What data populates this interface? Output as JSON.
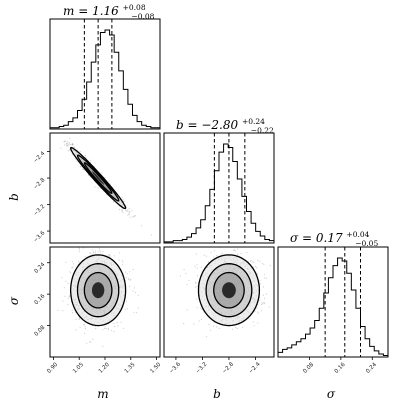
{
  "chart_data": {
    "type": "corner",
    "parameters": [
      {
        "key": "m",
        "label": "m",
        "title_main": "m = 1.16",
        "title_sup": "+0.08",
        "title_sub": "−0.08",
        "median": 1.16,
        "q_low": 1.08,
        "q_high": 1.24,
        "range": [
          0.88,
          1.52
        ],
        "ticks": [
          0.9,
          1.05,
          1.2,
          1.35,
          1.5
        ],
        "tick_labels": [
          "0.90",
          "1.05",
          "1.20",
          "1.35",
          "1.50"
        ],
        "hist_counts": [
          1,
          1,
          2,
          3,
          6,
          9,
          15,
          24,
          38,
          54,
          68,
          78,
          80,
          76,
          62,
          47,
          32,
          20,
          11,
          6,
          3,
          2,
          1,
          1
        ]
      },
      {
        "key": "b",
        "label": "b",
        "title_main": "b = −2.80",
        "title_sup": "+0.24",
        "title_sub": "−0.22",
        "median": -2.8,
        "q_low": -3.02,
        "q_high": -2.56,
        "range": [
          -3.78,
          -2.12
        ],
        "ticks": [
          -3.6,
          -3.2,
          -2.8,
          -2.4
        ],
        "tick_labels": [
          "−3.6",
          "−3.2",
          "−2.8",
          "−2.4"
        ],
        "extra_tick_labels": [
          "−2.0"
        ],
        "hist_counts": [
          1,
          1,
          2,
          2,
          3,
          5,
          8,
          13,
          20,
          32,
          46,
          62,
          78,
          85,
          82,
          70,
          55,
          40,
          27,
          17,
          10,
          6,
          3,
          2
        ]
      },
      {
        "key": "sigma",
        "label": "σ",
        "title_main": "σ = 0.17",
        "title_sup": "+0.04",
        "title_sub": "−0.05",
        "median": 0.17,
        "q_low": 0.12,
        "q_high": 0.21,
        "range": [
          0.0,
          0.28
        ],
        "ticks": [
          0.08,
          0.16,
          0.24
        ],
        "tick_labels": [
          "0.08",
          "0.16",
          "0.24"
        ],
        "extra_tick_labels": [
          "0.00"
        ],
        "hist_counts": [
          3,
          5,
          6,
          8,
          10,
          12,
          15,
          19,
          24,
          32,
          42,
          52,
          60,
          65,
          63,
          55,
          44,
          32,
          20,
          12,
          7,
          4,
          2,
          1
        ]
      }
    ],
    "joint": {
      "m_b_correlation": -0.98,
      "m_sigma_correlation": 0.0,
      "b_sigma_correlation": 0.0
    },
    "grid": false,
    "legend": "none"
  }
}
